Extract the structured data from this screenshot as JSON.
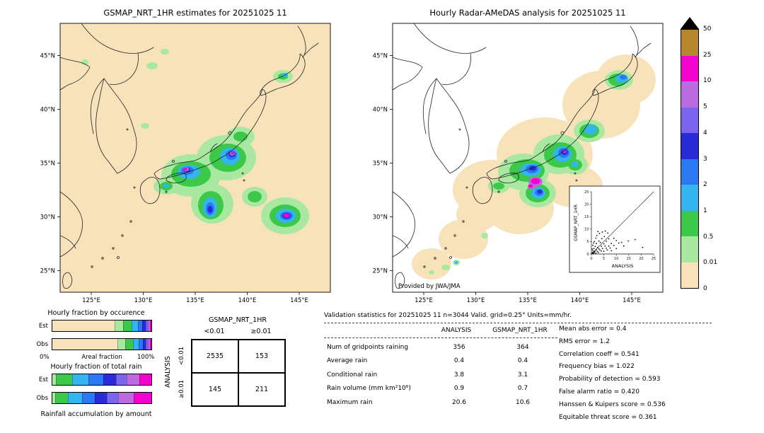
{
  "left_map": {
    "title": "GSMAP_NRT_1HR estimates for 20251025 11",
    "x_ticks": [
      "125°E",
      "130°E",
      "135°E",
      "140°E",
      "145°E"
    ],
    "y_ticks": [
      "45°N",
      "40°N",
      "35°N",
      "30°N",
      "25°N"
    ]
  },
  "right_map": {
    "title": "Hourly Radar-AMeDAS analysis for 20251025 11",
    "x_ticks": [
      "125°E",
      "130°E",
      "135°E",
      "140°E",
      "145°E"
    ],
    "y_ticks": [
      "45°N",
      "40°N",
      "35°N",
      "30°N",
      "25°N"
    ],
    "credit": "Provided by JWA/JMA"
  },
  "chart_data": [
    {
      "type": "heatmap",
      "name": "precipitation-maps",
      "titles": [
        "GSMAP_NRT_1HR estimates for 20251025 11",
        "Hourly Radar-AMeDAS analysis for 20251025 11"
      ],
      "units": "mm/hr",
      "lon_range_est": [
        122,
        148
      ],
      "lat_range_est": [
        23,
        48
      ],
      "levels": [
        "50",
        "25",
        "10",
        "5",
        "4",
        "3",
        "2",
        "1",
        "0.5",
        "0.01",
        "0"
      ],
      "band_colors": [
        "#B8862B",
        "#F203CE",
        "#BC6BE0",
        "#7A66EE",
        "#2A2AD8",
        "#2A79F2",
        "#35B5F0",
        "#3CC94A",
        "#A8E8A0",
        "#F7E2BA"
      ],
      "over_color": "#000000"
    },
    {
      "type": "scatter",
      "name": "gsmap-vs-analysis-inset",
      "xlabel": "ANALYSIS",
      "ylabel": "GSMAP_NRT_1HR",
      "xlim": [
        0,
        25
      ],
      "ylim": [
        0,
        25
      ],
      "ticks": [
        0,
        5,
        10,
        15,
        20,
        25
      ],
      "points": [
        [
          0.2,
          0.1
        ],
        [
          0.4,
          0.6
        ],
        [
          0.5,
          0.2
        ],
        [
          0.6,
          1.4
        ],
        [
          0.8,
          0.4
        ],
        [
          1,
          0.9
        ],
        [
          1,
          2.2
        ],
        [
          1.2,
          0.5
        ],
        [
          1.4,
          1.1
        ],
        [
          1.5,
          3
        ],
        [
          1.8,
          0.3
        ],
        [
          2,
          1.6
        ],
        [
          2,
          4.2
        ],
        [
          2.4,
          1
        ],
        [
          2.5,
          2.6
        ],
        [
          2.8,
          0.6
        ],
        [
          3,
          2.1
        ],
        [
          3,
          5.2
        ],
        [
          3.4,
          1.6
        ],
        [
          3.6,
          4.6
        ],
        [
          4,
          1.2
        ],
        [
          4,
          3.1
        ],
        [
          4.2,
          6.2
        ],
        [
          4.5,
          2.2
        ],
        [
          5,
          1.1
        ],
        [
          5,
          4.1
        ],
        [
          5.2,
          7
        ],
        [
          5.5,
          3.2
        ],
        [
          6,
          2.3
        ],
        [
          6,
          5.1
        ],
        [
          6.4,
          1.6
        ],
        [
          7,
          3.2
        ],
        [
          7,
          6.1
        ],
        [
          7.5,
          2.4
        ],
        [
          8,
          4.2
        ],
        [
          8,
          1.3
        ],
        [
          9,
          3.4
        ],
        [
          9,
          6.3
        ],
        [
          10,
          2.2
        ],
        [
          10,
          5.4
        ],
        [
          0.3,
          2
        ],
        [
          0.6,
          3.5
        ],
        [
          1.2,
          5
        ],
        [
          2.2,
          7.4
        ],
        [
          3.2,
          8.2
        ],
        [
          1.8,
          6.4
        ],
        [
          0.9,
          4.4
        ],
        [
          4.4,
          8.8
        ],
        [
          5.6,
          9.2
        ],
        [
          2.6,
          9
        ],
        [
          6.6,
          8.4
        ],
        [
          11,
          4.4
        ],
        [
          13,
          3.2
        ],
        [
          20.6,
          2.6
        ]
      ],
      "plus_points": [
        [
          12.2,
          4.6
        ],
        [
          14.8,
          5.2
        ],
        [
          17.6,
          5.8
        ]
      ]
    },
    {
      "type": "table",
      "name": "contingency-table",
      "col_group": "GSMAP_NRT_1HR",
      "row_group": "ANALYSIS",
      "col_labels": [
        "<0.01",
        "≥0.01"
      ],
      "row_labels": [
        "<0.01",
        "≥0.01"
      ],
      "values": [
        [
          2535,
          153
        ],
        [
          145,
          211
        ]
      ]
    },
    {
      "type": "bar",
      "name": "hourly-fraction-by-occurrence",
      "title": "Hourly fraction by occurence",
      "xlabel": "Areal fraction",
      "xlim_labels": [
        "0%",
        "100%"
      ],
      "rows": [
        {
          "label": "Est",
          "segments": [
            {
              "c": "#F7E2BA",
              "w": 67
            },
            {
              "c": "#A8E8A0",
              "w": 8
            },
            {
              "c": "#3CC94A",
              "w": 8
            },
            {
              "c": "#35B5F0",
              "w": 6.5
            },
            {
              "c": "#2A79F2",
              "w": 4
            },
            {
              "c": "#2A2AD8",
              "w": 2.8
            },
            {
              "c": "#7A66EE",
              "w": 1.7
            },
            {
              "c": "#BC6BE0",
              "w": 1.2
            },
            {
              "c": "#F203CE",
              "w": 0.8
            }
          ]
        },
        {
          "label": "Obs",
          "segments": [
            {
              "c": "#F7E2BA",
              "w": 70
            },
            {
              "c": "#A8E8A0",
              "w": 7.5
            },
            {
              "c": "#3CC94A",
              "w": 7
            },
            {
              "c": "#35B5F0",
              "w": 5.5
            },
            {
              "c": "#2A79F2",
              "w": 3.8
            },
            {
              "c": "#2A2AD8",
              "w": 2.6
            },
            {
              "c": "#7A66EE",
              "w": 1.6
            },
            {
              "c": "#BC6BE0",
              "w": 1.2
            },
            {
              "c": "#F203CE",
              "w": 0.8
            }
          ]
        }
      ]
    },
    {
      "type": "bar",
      "name": "hourly-fraction-of-total-rain",
      "title": "Hourly fraction of total rain",
      "caption": "Rainfall accumulation by amount",
      "rows": [
        {
          "label": "Est",
          "segments": [
            {
              "c": "#A8E8A0",
              "w": 4
            },
            {
              "c": "#3CC94A",
              "w": 16
            },
            {
              "c": "#35B5F0",
              "w": 17
            },
            {
              "c": "#2A79F2",
              "w": 15
            },
            {
              "c": "#2A2AD8",
              "w": 13
            },
            {
              "c": "#7A66EE",
              "w": 10
            },
            {
              "c": "#BC6BE0",
              "w": 13
            },
            {
              "c": "#F203CE",
              "w": 12
            }
          ]
        },
        {
          "label": "Obs",
          "segments": [
            {
              "c": "#A8E8A0",
              "w": 3
            },
            {
              "c": "#3CC94A",
              "w": 13
            },
            {
              "c": "#35B5F0",
              "w": 14
            },
            {
              "c": "#2A79F2",
              "w": 13
            },
            {
              "c": "#2A2AD8",
              "w": 12
            },
            {
              "c": "#7A66EE",
              "w": 11
            },
            {
              "c": "#BC6BE0",
              "w": 16
            },
            {
              "c": "#F203CE",
              "w": 18
            }
          ]
        }
      ]
    },
    {
      "type": "table",
      "name": "validation-statistics",
      "title": "Validation statistics for 20251025 11  n=3044 Valid. grid=0.25° Units=mm/hr.",
      "col_headers": [
        "ANALYSIS",
        "GSMAP_NRT_1HR"
      ],
      "rows": [
        {
          "label": "Num of gridpoints raining",
          "analysis": "356",
          "gsmap": "364"
        },
        {
          "label": "Average rain",
          "analysis": "0.4",
          "gsmap": "0.4"
        },
        {
          "label": "Conditional rain",
          "analysis": "3.8",
          "gsmap": "3.1"
        },
        {
          "label": "Rain volume (mm km²10⁶)",
          "analysis": "0.9",
          "gsmap": "0.7"
        },
        {
          "label": "Maximum rain",
          "analysis": "20.6",
          "gsmap": "10.6"
        }
      ],
      "scores": [
        {
          "label": "Mean abs error",
          "value": "0.4"
        },
        {
          "label": "RMS error",
          "value": "1.2"
        },
        {
          "label": "Correlation coeff",
          "value": "0.541"
        },
        {
          "label": "Frequency bias",
          "value": "1.022"
        },
        {
          "label": "Probability of detection",
          "value": "0.593"
        },
        {
          "label": "False alarm ratio",
          "value": "0.420"
        },
        {
          "label": "Hanssen & Kuipers score",
          "value": "0.536"
        },
        {
          "label": "Equitable threat score",
          "value": "0.361"
        }
      ]
    }
  ]
}
